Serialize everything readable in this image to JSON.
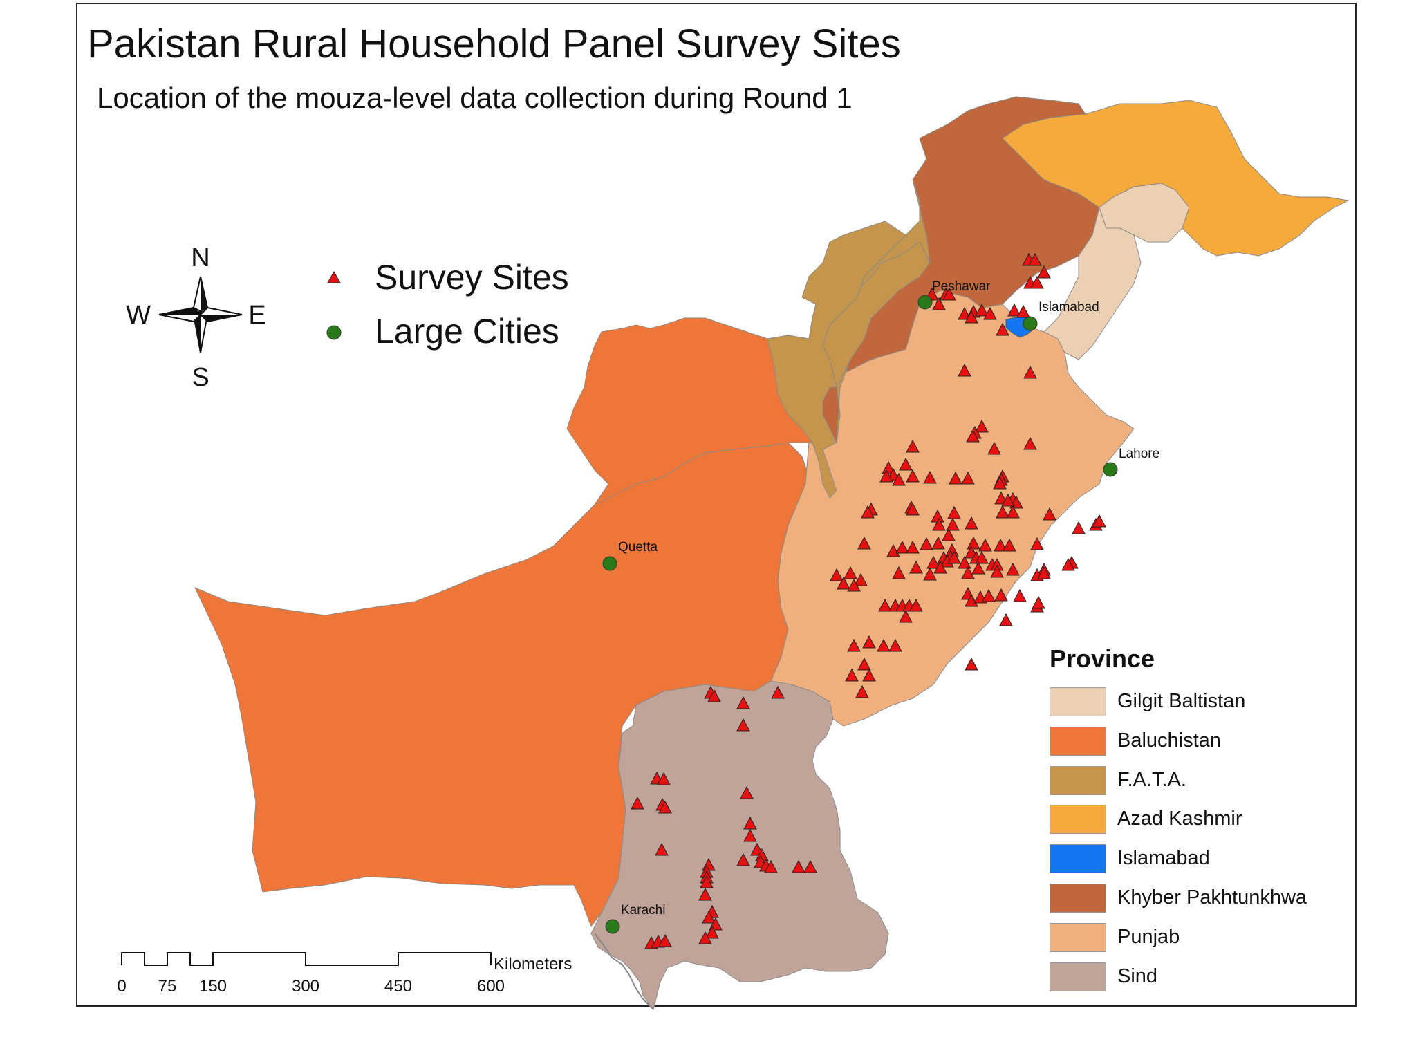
{
  "title": "Pakistan Rural Household Panel Survey Sites",
  "subtitle": "Location of the mouza-level data collection during Round 1",
  "compass": {
    "north": "N",
    "south": "S",
    "east": "E",
    "west": "W"
  },
  "point_legend": {
    "survey_sites": "Survey Sites",
    "large_cities": "Large Cities"
  },
  "cities": [
    "Peshawar",
    "Islamabad",
    "Lahore",
    "Quetta",
    "Karachi"
  ],
  "province_legend": {
    "title": "Province",
    "items": [
      {
        "label": "Gilgit Baltistan",
        "color": "#ecd0b4"
      },
      {
        "label": "Baluchistan",
        "color": "#ee7638"
      },
      {
        "label": "F.A.T.A.",
        "color": "#c6954d"
      },
      {
        "label": "Azad Kashmir",
        "color": "#f6aa3c"
      },
      {
        "label": "Islamabad",
        "color": "#1277f0"
      },
      {
        "label": "Khyber Pakhtunkhwa",
        "color": "#c0683c"
      },
      {
        "label": "Punjab",
        "color": "#f0b07e"
      },
      {
        "label": "Sind",
        "color": "#c0a49a"
      }
    ]
  },
  "scale_bar": {
    "unit": "Kilometers",
    "ticks": [
      "0",
      "75",
      "150",
      "300",
      "450",
      "600"
    ]
  },
  "colors": {
    "survey_site": "#e81010",
    "large_city": "#2a7a1a"
  }
}
